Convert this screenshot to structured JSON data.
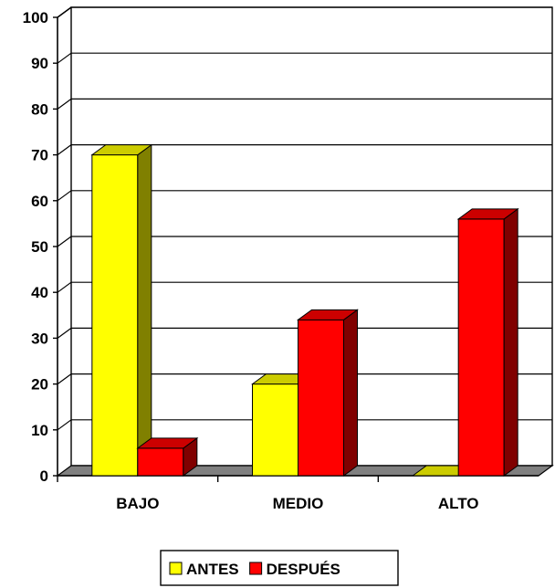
{
  "chart_data": {
    "type": "bar",
    "title": "",
    "xlabel": "",
    "ylabel": "",
    "categories": [
      "BAJO",
      "MEDIO",
      "ALTO"
    ],
    "series": [
      {
        "name": "ANTES",
        "values": [
          70,
          20,
          0
        ],
        "color": "#ffff00"
      },
      {
        "name": "DESPUÉS",
        "values": [
          6,
          34,
          56
        ],
        "color": "#ff0000"
      }
    ],
    "ylim": [
      0,
      100
    ],
    "yticks": [
      0,
      10,
      20,
      30,
      40,
      50,
      60,
      70,
      80,
      90,
      100
    ],
    "grid": true,
    "three_d": true,
    "legend": {
      "position": "bottom-center"
    }
  }
}
